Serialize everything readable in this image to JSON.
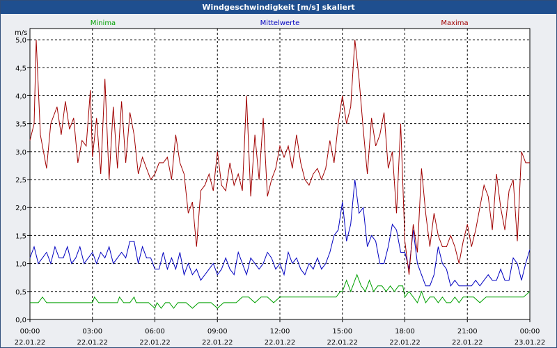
{
  "window": {
    "title": "Windgeschwindigkeit [m/s] skaliert"
  },
  "chart_data": {
    "type": "line",
    "title": "Windgeschwindigkeit [m/s] skaliert",
    "ylabel": "m/s",
    "xlabel": "",
    "ylim": [
      0,
      5.2
    ],
    "grid": true,
    "y_ticks": [
      "0,0",
      "0,5",
      "1,0",
      "1,5",
      "2,0",
      "2,5",
      "3,0",
      "3,5",
      "4,0",
      "4,5",
      "5,0"
    ],
    "x_ticks": [
      {
        "time": "00:00",
        "date": "22.01.22"
      },
      {
        "time": "03:00",
        "date": "22.01.22"
      },
      {
        "time": "06:00",
        "date": "22.01.22"
      },
      {
        "time": "09:00",
        "date": "22.01.22"
      },
      {
        "time": "12:00",
        "date": "22.01.22"
      },
      {
        "time": "15:00",
        "date": "22.01.22"
      },
      {
        "time": "18:00",
        "date": "22.01.22"
      },
      {
        "time": "21:00",
        "date": "22.01.22"
      },
      {
        "time": "00:00",
        "date": "23.01.22"
      }
    ],
    "legend": [
      "Minima",
      "Mittelwerte",
      "Maxima"
    ],
    "series": [
      {
        "name": "Minima",
        "color": "#00a000",
        "x": [
          0,
          0.2,
          0.4,
          0.6,
          0.8,
          1,
          1.2,
          1.5,
          1.8,
          2.1,
          2.4,
          2.7,
          3,
          3.1,
          3.3,
          3.6,
          3.9,
          4.2,
          4.3,
          4.5,
          4.8,
          5,
          5.1,
          5.4,
          5.7,
          6,
          6.1,
          6.3,
          6.5,
          6.7,
          6.9,
          7.1,
          7.3,
          7.5,
          7.8,
          8.1,
          8.4,
          8.7,
          9,
          9.3,
          9.6,
          9.9,
          10.2,
          10.5,
          10.8,
          11.1,
          11.4,
          11.7,
          12,
          12.3,
          12.6,
          12.9,
          13.2,
          13.5,
          13.8,
          14.1,
          14.4,
          14.7,
          14.9,
          15,
          15.2,
          15.4,
          15.5,
          15.7,
          15.9,
          16.1,
          16.3,
          16.5,
          16.7,
          16.9,
          17.1,
          17.3,
          17.5,
          17.7,
          17.9,
          18,
          18.2,
          18.4,
          18.6,
          18.8,
          19,
          19.2,
          19.4,
          19.6,
          19.8,
          20,
          20.2,
          20.4,
          20.6,
          20.8,
          21,
          21.3,
          21.6,
          21.9,
          22.2,
          22.5,
          22.8,
          23.1,
          23.4,
          23.7,
          24
        ],
        "values": [
          0.3,
          0.3,
          0.3,
          0.4,
          0.3,
          0.3,
          0.3,
          0.3,
          0.3,
          0.3,
          0.3,
          0.3,
          0.3,
          0.4,
          0.3,
          0.3,
          0.3,
          0.3,
          0.4,
          0.3,
          0.3,
          0.4,
          0.3,
          0.3,
          0.3,
          0.2,
          0.3,
          0.2,
          0.3,
          0.3,
          0.2,
          0.3,
          0.3,
          0.3,
          0.2,
          0.3,
          0.3,
          0.3,
          0.2,
          0.3,
          0.3,
          0.3,
          0.4,
          0.4,
          0.3,
          0.4,
          0.4,
          0.3,
          0.4,
          0.4,
          0.4,
          0.4,
          0.4,
          0.4,
          0.4,
          0.4,
          0.4,
          0.4,
          0.5,
          0.5,
          0.7,
          0.5,
          0.6,
          0.8,
          0.6,
          0.5,
          0.7,
          0.5,
          0.6,
          0.6,
          0.5,
          0.6,
          0.5,
          0.6,
          0.6,
          0.4,
          0.5,
          0.4,
          0.3,
          0.5,
          0.3,
          0.4,
          0.4,
          0.3,
          0.4,
          0.3,
          0.3,
          0.4,
          0.3,
          0.4,
          0.4,
          0.4,
          0.3,
          0.4,
          0.4,
          0.4,
          0.4,
          0.4,
          0.4,
          0.4,
          0.5
        ]
      },
      {
        "name": "Mittelwerte",
        "color": "#0000c0",
        "x": [
          0,
          0.2,
          0.4,
          0.6,
          0.8,
          1,
          1.2,
          1.4,
          1.6,
          1.8,
          2,
          2.2,
          2.4,
          2.6,
          2.8,
          3,
          3.2,
          3.4,
          3.6,
          3.8,
          4,
          4.2,
          4.4,
          4.6,
          4.8,
          5,
          5.2,
          5.4,
          5.6,
          5.8,
          6,
          6.2,
          6.4,
          6.6,
          6.8,
          7,
          7.2,
          7.4,
          7.6,
          7.8,
          8,
          8.2,
          8.4,
          8.6,
          8.8,
          9,
          9.2,
          9.4,
          9.6,
          9.8,
          10,
          10.2,
          10.4,
          10.6,
          10.8,
          11,
          11.2,
          11.4,
          11.6,
          11.8,
          12,
          12.2,
          12.4,
          12.6,
          12.8,
          13,
          13.2,
          13.4,
          13.6,
          13.8,
          14,
          14.2,
          14.4,
          14.6,
          14.8,
          15,
          15.2,
          15.4,
          15.6,
          15.8,
          16,
          16.2,
          16.4,
          16.6,
          16.8,
          17,
          17.2,
          17.4,
          17.6,
          17.8,
          18,
          18.2,
          18.4,
          18.6,
          18.8,
          19,
          19.2,
          19.4,
          19.6,
          19.8,
          20,
          20.2,
          20.4,
          20.6,
          20.8,
          21,
          21.2,
          21.4,
          21.6,
          21.8,
          22,
          22.2,
          22.4,
          22.6,
          22.8,
          23,
          23.2,
          23.4,
          23.6,
          23.8,
          24
        ],
        "values": [
          1.1,
          1.3,
          1.0,
          1.1,
          1.2,
          1.0,
          1.3,
          1.1,
          1.1,
          1.3,
          1.0,
          1.1,
          1.3,
          1.0,
          1.1,
          1.2,
          1.0,
          1.2,
          1.1,
          1.3,
          1.0,
          1.1,
          1.2,
          1.1,
          1.4,
          1.4,
          1.0,
          1.3,
          1.1,
          1.1,
          0.9,
          0.9,
          1.2,
          0.9,
          1.1,
          0.9,
          1.2,
          0.8,
          1.0,
          0.8,
          0.9,
          0.7,
          0.8,
          0.9,
          1.0,
          0.8,
          0.9,
          1.1,
          0.9,
          0.8,
          1.2,
          1.0,
          0.8,
          1.1,
          1.0,
          0.9,
          1.0,
          1.2,
          1.1,
          0.9,
          1.0,
          0.8,
          1.2,
          1.0,
          1.1,
          0.9,
          0.8,
          1.0,
          0.9,
          1.1,
          0.9,
          1.0,
          1.2,
          1.5,
          1.6,
          2.1,
          1.4,
          1.7,
          2.5,
          1.9,
          2.0,
          1.3,
          1.5,
          1.4,
          1.0,
          1.0,
          1.3,
          1.7,
          1.6,
          1.2,
          1.2,
          0.9,
          1.6,
          1.0,
          0.8,
          0.6,
          0.6,
          0.8,
          1.3,
          1.0,
          0.9,
          0.6,
          0.7,
          0.6,
          0.6,
          0.6,
          0.6,
          0.7,
          0.6,
          0.7,
          0.8,
          0.7,
          0.7,
          0.9,
          0.7,
          0.7,
          1.1,
          1.0,
          0.7,
          1.0,
          1.25
        ]
      },
      {
        "name": "Maxima",
        "color": "#a00000",
        "x": [
          0,
          0.2,
          0.3,
          0.5,
          0.8,
          1,
          1.3,
          1.5,
          1.7,
          1.9,
          2.1,
          2.3,
          2.5,
          2.7,
          2.9,
          3,
          3.2,
          3.4,
          3.6,
          3.8,
          4,
          4.2,
          4.4,
          4.6,
          4.8,
          5,
          5.2,
          5.4,
          5.6,
          5.8,
          6,
          6.2,
          6.4,
          6.6,
          6.8,
          7,
          7.2,
          7.4,
          7.6,
          7.8,
          8,
          8.2,
          8.4,
          8.6,
          8.8,
          9,
          9.2,
          9.4,
          9.6,
          9.8,
          10,
          10.2,
          10.4,
          10.6,
          10.8,
          11,
          11.2,
          11.4,
          11.6,
          11.8,
          12,
          12.2,
          12.4,
          12.6,
          12.8,
          13,
          13.2,
          13.4,
          13.6,
          13.8,
          14,
          14.2,
          14.4,
          14.6,
          14.8,
          15,
          15.2,
          15.4,
          15.6,
          15.8,
          16,
          16.2,
          16.4,
          16.6,
          16.8,
          17,
          17.2,
          17.4,
          17.6,
          17.8,
          18,
          18.2,
          18.4,
          18.6,
          18.8,
          19,
          19.2,
          19.4,
          19.6,
          19.8,
          20,
          20.2,
          20.4,
          20.6,
          20.8,
          21,
          21.2,
          21.4,
          21.6,
          21.8,
          22,
          22.2,
          22.4,
          22.6,
          22.8,
          23,
          23.2,
          23.4,
          23.6,
          23.8,
          24
        ],
        "values": [
          3.2,
          3.5,
          5.0,
          3.3,
          2.7,
          3.5,
          3.8,
          3.3,
          3.9,
          3.4,
          3.6,
          2.8,
          3.2,
          3.1,
          4.1,
          2.9,
          3.6,
          2.6,
          4.3,
          2.5,
          3.8,
          2.7,
          3.9,
          2.8,
          3.7,
          3.3,
          2.6,
          2.9,
          2.7,
          2.5,
          2.6,
          2.8,
          2.8,
          2.9,
          2.5,
          3.3,
          2.8,
          2.6,
          1.9,
          2.1,
          1.3,
          2.3,
          2.4,
          2.6,
          2.3,
          3.0,
          2.4,
          2.3,
          2.8,
          2.4,
          2.6,
          2.3,
          4.0,
          2.2,
          3.3,
          2.5,
          3.6,
          2.2,
          2.5,
          2.7,
          3.1,
          2.9,
          3.1,
          2.7,
          3.3,
          2.8,
          2.5,
          2.4,
          2.6,
          2.7,
          2.5,
          2.7,
          3.2,
          2.8,
          3.5,
          4.0,
          3.5,
          3.8,
          5.0,
          4.3,
          3.4,
          2.6,
          3.6,
          3.1,
          3.3,
          3.7,
          2.7,
          3.0,
          1.9,
          3.5,
          1.4,
          0.8,
          1.7,
          1.2,
          2.7,
          1.9,
          1.3,
          1.9,
          1.5,
          1.3,
          1.3,
          1.5,
          1.3,
          1.0,
          1.4,
          1.7,
          1.3,
          1.6,
          2.0,
          2.4,
          2.2,
          1.6,
          2.6,
          2.0,
          1.6,
          2.3,
          2.5,
          1.4,
          3.0,
          2.8,
          2.8
        ]
      }
    ]
  }
}
